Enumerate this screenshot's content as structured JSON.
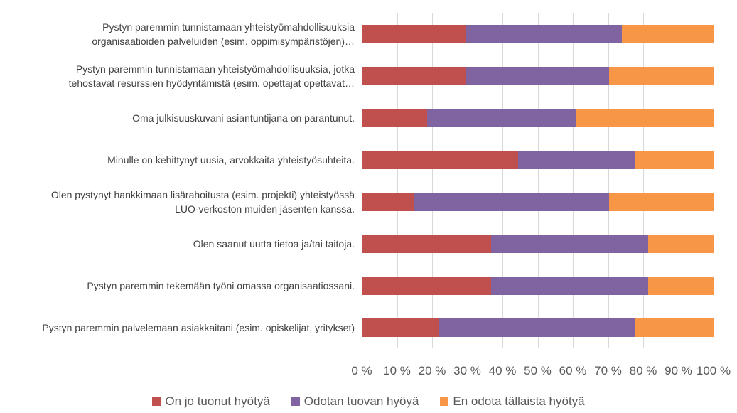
{
  "chart_data": {
    "type": "bar",
    "orientation": "horizontal",
    "stacked": true,
    "categories": [
      "Pystyn paremmin tunnistamaan yhteistyömahdollisuuksia\norganisaatioiden palveluiden (esim. oppimisympäristöjen)…",
      "Pystyn paremmin tunnistamaan yhteistyömahdollisuuksia, jotka\ntehostavat resurssien hyödyntämistä (esim. opettajat opettavat…",
      "Oma julkisuuskuvani asiantuntijana on parantunut.",
      "Minulle on kehittynyt uusia, arvokkaita yhteistyösuhteita.",
      "Olen pystynyt hankkimaan lisärahoitusta (esim. projekti) yhteistyössä\nLUO-verkoston muiden jäsenten kanssa.",
      "Olen saanut uutta tietoa ja/tai taitoja.",
      "Pystyn paremmin tekemään työni omassa organisaatiossani.",
      "Pystyn paremmin palvelemaan asiakkaitani (esim. opiskelijat, yritykset)"
    ],
    "series": [
      {
        "name": "On jo tuonut hyötyä",
        "color": "#c0504d",
        "values": [
          29.6,
          29.6,
          18.5,
          44.4,
          14.8,
          36.8,
          36.8,
          22.0
        ]
      },
      {
        "name": "Odotan tuovan hyöyä",
        "color": "#8064a2",
        "values": [
          44.4,
          40.7,
          42.5,
          33.2,
          55.5,
          44.6,
          44.6,
          55.6
        ]
      },
      {
        "name": "En odota tällaista hyötyä",
        "color": "#f79646",
        "values": [
          26.0,
          29.7,
          39.0,
          22.4,
          29.7,
          18.6,
          18.6,
          22.4
        ]
      }
    ],
    "xlim": [
      0,
      100
    ],
    "xticks": [
      {
        "value": 0,
        "label": "0 %"
      },
      {
        "value": 10,
        "label": "10 %"
      },
      {
        "value": 20,
        "label": "20 %"
      },
      {
        "value": 30,
        "label": "30 %"
      },
      {
        "value": 40,
        "label": "40 %"
      },
      {
        "value": 50,
        "label": "50 %"
      },
      {
        "value": 60,
        "label": "60 %"
      },
      {
        "value": 70,
        "label": "70 %"
      },
      {
        "value": 80,
        "label": "80 %"
      },
      {
        "value": 90,
        "label": "90 %"
      },
      {
        "value": 100,
        "label": "100 %"
      }
    ],
    "grid": true,
    "legend": "bottom"
  }
}
